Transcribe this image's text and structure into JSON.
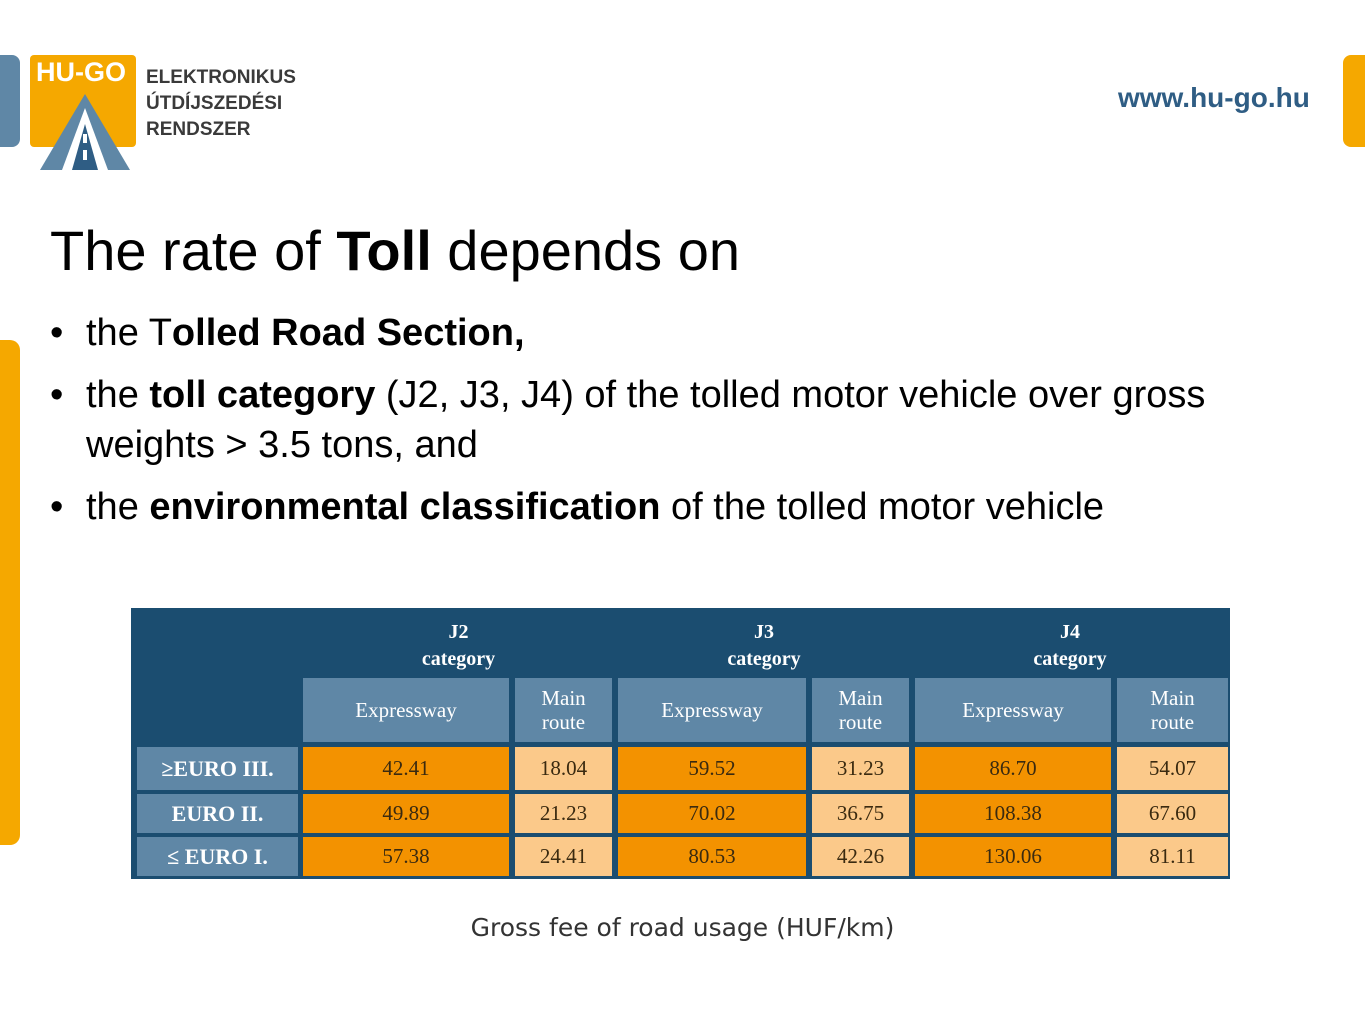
{
  "logo": {
    "badge": "HU-GO",
    "lines": [
      "ELEKTRONIKUS",
      "ÚTDÍJSZEDÉSI",
      "RENDSZER"
    ],
    "colors": {
      "badge": "#f5a800",
      "road": "#5f87a6"
    }
  },
  "site_url": "www.hu-go.hu",
  "title": {
    "pre": "The rate of ",
    "bold": "Toll",
    "post": " depends on"
  },
  "bullets": [
    {
      "pre": "the T",
      "bold": "olled Road Section,",
      "post": ""
    },
    {
      "pre": "the ",
      "bold": "toll category",
      "post": " (J2, J3, J4) of the tolled motor vehicle over gross weights > 3.5 tons,  and"
    },
    {
      "pre": "the ",
      "bold": "environmental classification",
      "post": " of the tolled motor vehicle"
    }
  ],
  "table": {
    "categories": [
      {
        "code": "J2",
        "label": "category"
      },
      {
        "code": "J3",
        "label": "category"
      },
      {
        "code": "J4",
        "label": "category"
      }
    ],
    "subheaders": [
      "Expressway",
      "Main route"
    ],
    "rows": [
      {
        "label": "≥EURO III.",
        "values": [
          "42.41",
          "18.04",
          "59.52",
          "31.23",
          "86.70",
          "54.07"
        ]
      },
      {
        "label": "EURO II.",
        "values": [
          "49.89",
          "21.23",
          "70.02",
          "36.75",
          "108.38",
          "67.60"
        ]
      },
      {
        "label": "≤ EURO I.",
        "values": [
          "57.38",
          "24.41",
          "80.53",
          "42.26",
          "130.06",
          "81.11"
        ]
      }
    ],
    "colors": {
      "header": "#1b4d70",
      "subheader": "#5f87a6",
      "expressway": "#f39200",
      "main_route": "#fbc98a"
    }
  },
  "caption": "Gross fee of road usage (HUF/km)"
}
